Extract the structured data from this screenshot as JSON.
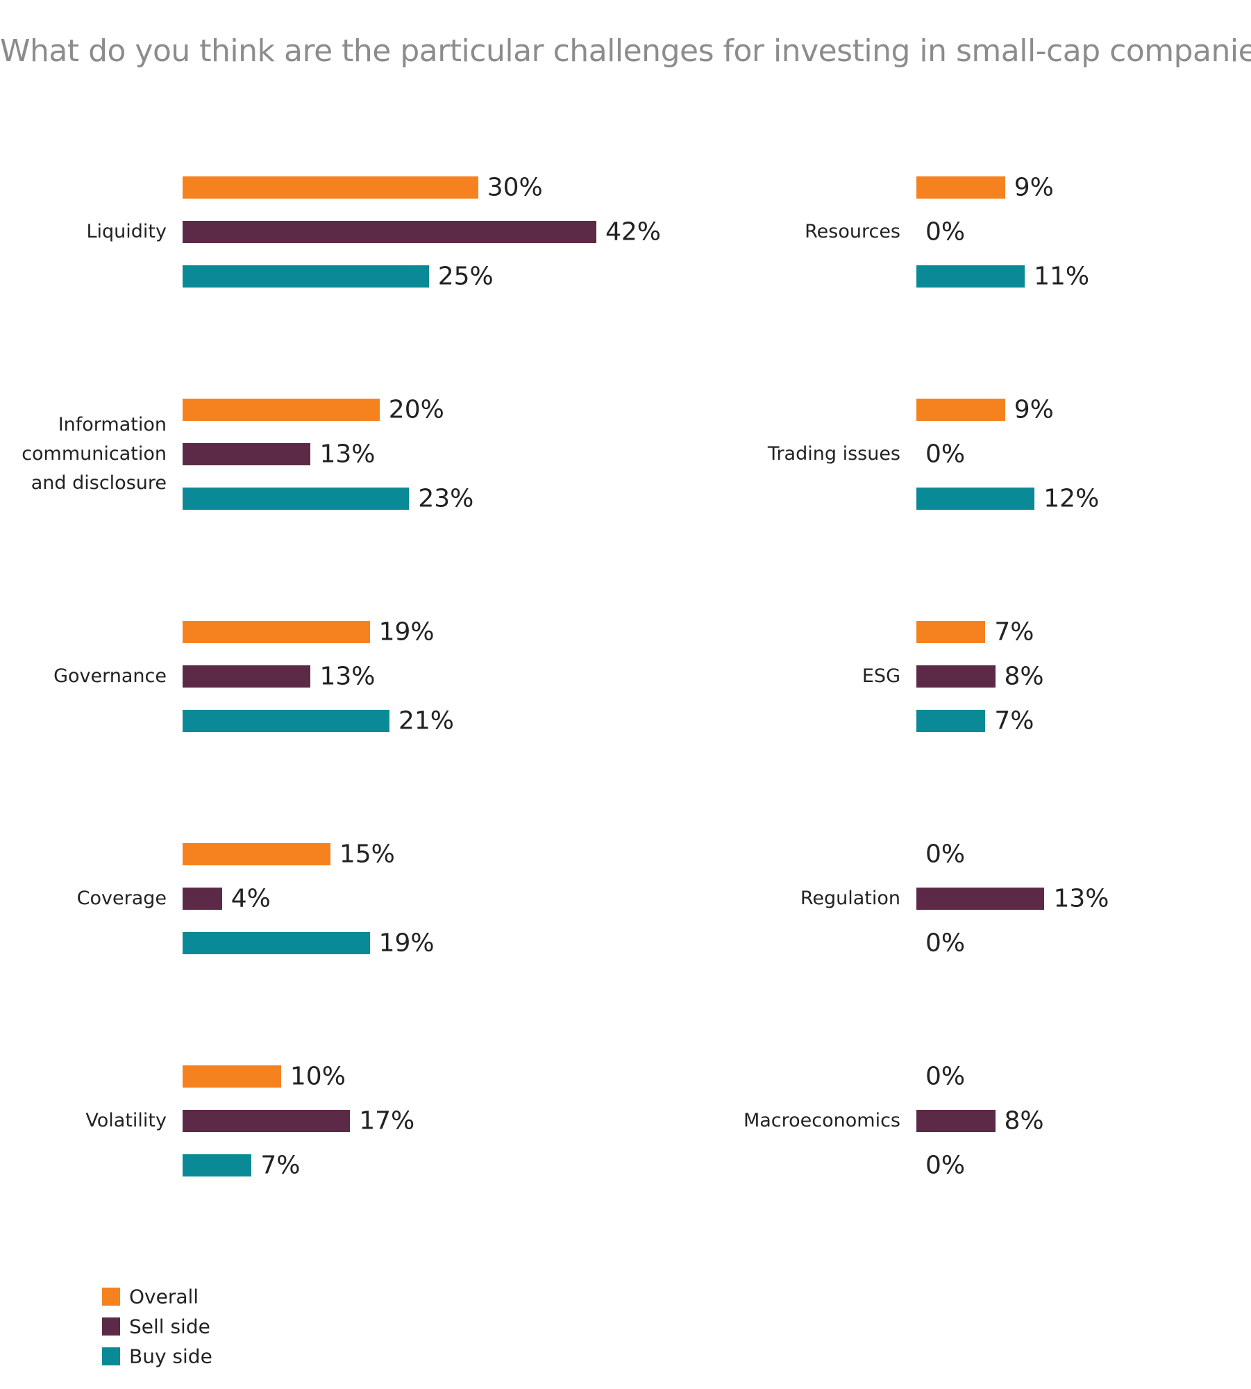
{
  "chart_data": {
    "type": "bar",
    "orientation": "horizontal",
    "title": "What do you think are the particular challenges for investing in small-cap companies?",
    "categories": [
      "Liquidity",
      "Information communication and disclosure",
      "Governance",
      "Coverage",
      "Volatility",
      "Resources",
      "Trading issues",
      "ESG",
      "Regulation",
      "Macroeconomics"
    ],
    "series": [
      {
        "name": "Overall",
        "color": "#f5821f",
        "values": [
          30,
          20,
          19,
          15,
          10,
          9,
          9,
          7,
          0,
          0
        ],
        "value_labels": [
          "30%",
          "20%",
          "19%",
          "15%",
          "10%",
          "9%",
          "9%",
          "7%",
          "0%",
          "0%"
        ]
      },
      {
        "name": "Sell side",
        "color": "#5c2a46",
        "values": [
          42,
          13,
          13,
          4,
          17,
          0,
          0,
          8,
          13,
          8
        ],
        "value_labels": [
          "42%",
          "13%",
          "13%",
          "4%",
          "17%",
          "0%",
          "0%",
          "8%",
          "13%",
          "8%"
        ]
      },
      {
        "name": "Buy side",
        "color": "#0a8a96",
        "values": [
          25,
          23,
          21,
          19,
          7,
          11,
          12,
          7,
          0,
          0
        ],
        "value_labels": [
          "25%",
          "23%",
          "21%",
          "19%",
          "7%",
          "11%",
          "12%",
          "7%",
          "0%",
          "0%"
        ]
      }
    ],
    "legend": "bottom-left"
  }
}
